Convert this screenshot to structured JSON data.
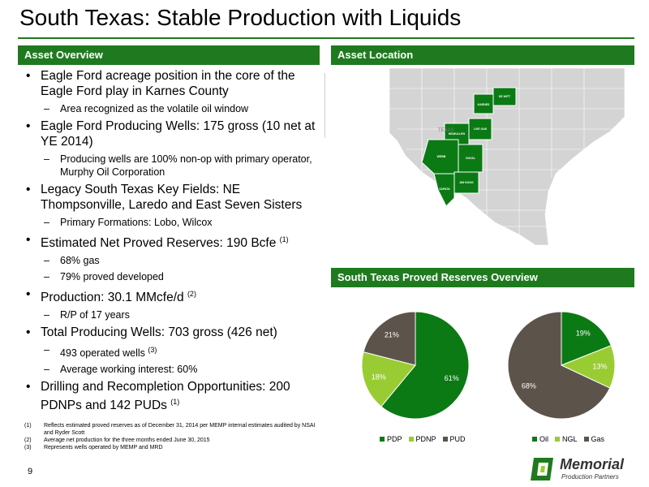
{
  "slide": {
    "title": "South Texas: Stable Production with Liquids",
    "page_number": "9"
  },
  "asset_overview": {
    "header": "Asset Overview",
    "bullets": [
      {
        "text": "Eagle Ford acreage position in the core of the Eagle Ford play in Karnes County",
        "sup": "",
        "subs": [
          {
            "text": "Area recognized as the volatile oil window",
            "sup": ""
          }
        ]
      },
      {
        "text": "Eagle Ford Producing Wells: 175 gross (10 net at YE 2014)",
        "sup": "",
        "subs": [
          {
            "text": "Producing wells are 100% non-op with primary operator, Murphy Oil Corporation",
            "sup": ""
          }
        ]
      },
      {
        "text": "Legacy South Texas Key Fields: NE Thompsonville, Laredo and East Seven Sisters",
        "sup": "",
        "subs": [
          {
            "text": "Primary Formations: Lobo, Wilcox",
            "sup": ""
          }
        ]
      },
      {
        "text": "Estimated Net Proved Reserves: 190 Bcfe",
        "sup": "(1)",
        "subs": [
          {
            "text": "68% gas",
            "sup": ""
          },
          {
            "text": "79% proved developed",
            "sup": ""
          }
        ]
      },
      {
        "text": "Production: 30.1 MMcfe/d",
        "sup": "(2)",
        "subs": [
          {
            "text": "R/P of 17 years",
            "sup": ""
          }
        ]
      },
      {
        "text": "Total Producing Wells: 703 gross (426 net)",
        "sup": "",
        "subs": [
          {
            "text": "493 operated wells",
            "sup": "(3)"
          },
          {
            "text": "Average working interest: 60%",
            "sup": ""
          }
        ]
      },
      {
        "text": "Drilling and Recompletion Opportunities: 200 PDNPs and 142 PUDs",
        "sup": "(1)",
        "subs": []
      }
    ]
  },
  "asset_location": {
    "header": "Asset Location",
    "map_label": "TEXAS",
    "counties": [
      "KARNES",
      "DE WITT",
      "MCMULLEN",
      "LIVE OAK",
      "WEBB",
      "DUVAL",
      "JIM HOGG",
      "ZAPATA"
    ]
  },
  "reserves": {
    "header": "South Texas Proved Reserves Overview"
  },
  "footnotes": [
    {
      "num": "(1)",
      "text": "Reflects estimated proved reserves as of December 31, 2014 per MEMP internal estimates audited by NSAI and Ryder Scott"
    },
    {
      "num": "(2)",
      "text": "Average net production for the three months ended June 30, 2015"
    },
    {
      "num": "(3)",
      "text": "Represents wells operated by MEMP and MRD"
    }
  ],
  "logo": {
    "name": "Memorial",
    "tagline": "Production Partners"
  },
  "colors": {
    "accent_green": "#1f7a1f",
    "light_green": "#99cc33",
    "brown": "#5c534b",
    "dark_green": "#0b7a14"
  },
  "chart_data": [
    {
      "type": "pie",
      "title": "",
      "categories": [
        "PDP",
        "PDNP",
        "PUD"
      ],
      "values": [
        61,
        18,
        21
      ],
      "labels": [
        "61%",
        "18%",
        "21%"
      ],
      "colors": [
        "#0b7a14",
        "#99cc33",
        "#5c534b"
      ],
      "legend": "bottom"
    },
    {
      "type": "pie",
      "title": "",
      "categories": [
        "Oil",
        "NGL",
        "Gas"
      ],
      "values": [
        19,
        13,
        68
      ],
      "labels": [
        "19%",
        "13%",
        "68%"
      ],
      "colors": [
        "#0b7a14",
        "#99cc33",
        "#5c534b"
      ],
      "legend": "bottom"
    }
  ]
}
